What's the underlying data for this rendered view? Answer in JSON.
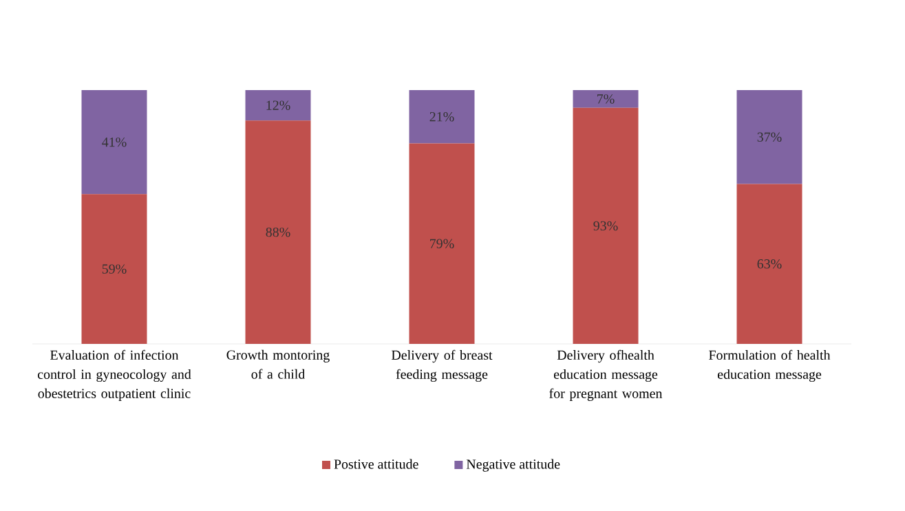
{
  "chart_data": {
    "type": "bar",
    "stacked": true,
    "legend": "bottom",
    "categories": [
      "Evaluation of infection control in gyneocology and obestetrics outpatient clinic",
      "Growth montoring of a child",
      "Delivery of breast feeding message",
      "Delivery ofhealth education  message for pregnant women",
      "Formulation of health education message"
    ],
    "series": [
      {
        "name": "Postive attitude",
        "color": "#c0504d",
        "values": [
          59,
          88,
          79,
          93,
          63
        ],
        "value_labels": [
          "59%",
          "88%",
          "79%",
          "93%",
          "63%"
        ]
      },
      {
        "name": "Negative attitude",
        "color": "#8064a2",
        "values": [
          41,
          12,
          21,
          7,
          37
        ],
        "value_labels": [
          "41%",
          "12%",
          "21%",
          "7%",
          "37%"
        ]
      }
    ]
  }
}
